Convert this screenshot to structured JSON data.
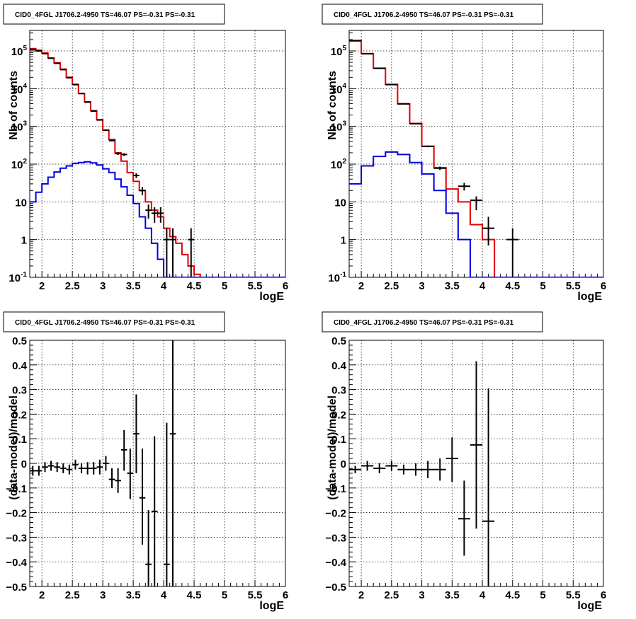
{
  "chart_data": [
    {
      "type": "histogram",
      "panel": "top-left",
      "title": "CID0_4FGL J1706.2-4950 TS=46.07 PS=-0.31 PS=-0.31",
      "xlabel": "logE",
      "ylabel": "Nb of counts",
      "xlim": [
        1.8,
        6.0
      ],
      "ylim": [
        0.1,
        350000
      ],
      "yscale": "log",
      "grid": true,
      "x_ticks": [
        "2",
        "2.5",
        "3",
        "3.5",
        "4",
        "4.5",
        "5",
        "5.5",
        "6"
      ],
      "y_ticks": [
        "10^-1",
        "1",
        "10",
        "10^2",
        "10^3",
        "10^4",
        "10^5"
      ],
      "bin_edges": [
        1.8,
        1.9,
        2.0,
        2.1,
        2.2,
        2.3,
        2.4,
        2.5,
        2.6,
        2.7,
        2.8,
        2.9,
        3.0,
        3.1,
        3.2,
        3.3,
        3.4,
        3.5,
        3.6,
        3.7,
        3.8,
        3.9,
        4.0,
        4.1,
        4.2,
        4.3,
        4.4,
        4.5,
        4.6,
        4.7,
        4.8,
        4.9,
        5.0,
        5.1,
        5.2,
        5.3,
        5.4,
        5.5,
        5.6,
        5.7,
        5.8,
        5.9,
        6.0
      ],
      "series": [
        {
          "name": "",
          "style": "histogram",
          "color": "#e00000",
          "values": [
            115000,
            105000,
            88000,
            65000,
            48000,
            33000,
            20000,
            13000,
            7500,
            4500,
            2600,
            1500,
            800,
            450,
            200,
            120,
            60,
            35,
            20,
            10,
            6,
            4,
            2,
            1.2,
            0.8,
            0.4,
            0.2,
            0.12,
            0.1,
            0.1,
            0.1,
            0.1,
            0.1,
            0.1,
            0.1,
            0.1,
            0.1,
            0.1,
            0.1,
            0.1,
            0.1,
            0.1
          ]
        },
        {
          "name": "",
          "style": "histogram",
          "color": "#0000e0",
          "values": [
            10,
            18,
            30,
            45,
            62,
            78,
            90,
            105,
            110,
            115,
            108,
            95,
            75,
            60,
            40,
            25,
            15,
            9,
            4,
            2,
            0.8,
            0.3,
            0.1,
            0.1,
            0.1,
            0.1,
            0.1,
            0.1,
            0.1,
            0.1,
            0.1,
            0.1,
            0.1,
            0.1,
            0.1,
            0.1,
            0.1,
            0.1,
            0.1,
            0.1,
            0.1,
            0.1
          ]
        },
        {
          "name": "",
          "style": "points",
          "color": "#000000",
          "points": [
            {
              "x": 1.85,
              "y": 110000,
              "xerr": 0.05,
              "ylo": 109000,
              "yhi": 111000
            },
            {
              "x": 1.95,
              "y": 100000,
              "xerr": 0.05,
              "ylo": 99000,
              "yhi": 101000
            },
            {
              "x": 2.05,
              "y": 85000,
              "xerr": 0.05,
              "ylo": 84000,
              "yhi": 86000
            },
            {
              "x": 2.15,
              "y": 64000,
              "xerr": 0.05,
              "ylo": 63000,
              "yhi": 65000
            },
            {
              "x": 2.25,
              "y": 47000,
              "xerr": 0.05,
              "ylo": 46500,
              "yhi": 47500
            },
            {
              "x": 2.35,
              "y": 32000,
              "xerr": 0.05,
              "ylo": 31500,
              "yhi": 32500
            },
            {
              "x": 2.45,
              "y": 19500,
              "xerr": 0.05,
              "ylo": 19200,
              "yhi": 19800
            },
            {
              "x": 2.55,
              "y": 12800,
              "xerr": 0.05,
              "ylo": 12600,
              "yhi": 13000
            },
            {
              "x": 2.65,
              "y": 7400,
              "xerr": 0.05,
              "ylo": 7300,
              "yhi": 7500
            },
            {
              "x": 2.75,
              "y": 4400,
              "xerr": 0.05,
              "ylo": 4330,
              "yhi": 4470
            },
            {
              "x": 2.85,
              "y": 2550,
              "xerr": 0.05,
              "ylo": 2500,
              "yhi": 2600
            },
            {
              "x": 2.95,
              "y": 1480,
              "xerr": 0.05,
              "ylo": 1440,
              "yhi": 1520
            },
            {
              "x": 3.05,
              "y": 790,
              "xerr": 0.05,
              "ylo": 760,
              "yhi": 820
            },
            {
              "x": 3.15,
              "y": 420,
              "xerr": 0.05,
              "ylo": 400,
              "yhi": 440
            },
            {
              "x": 3.25,
              "y": 190,
              "xerr": 0.05,
              "ylo": 175,
              "yhi": 205
            },
            {
              "x": 3.35,
              "y": 180,
              "xerr": 0.05,
              "ylo": 165,
              "yhi": 195
            },
            {
              "x": 3.55,
              "y": 50,
              "xerr": 0.05,
              "ylo": 43,
              "yhi": 57
            },
            {
              "x": 3.65,
              "y": 20,
              "xerr": 0.05,
              "ylo": 15,
              "yhi": 25
            },
            {
              "x": 3.75,
              "y": 6,
              "xerr": 0.05,
              "ylo": 3.6,
              "yhi": 8.5
            },
            {
              "x": 3.85,
              "y": 5,
              "xerr": 0.05,
              "ylo": 2.8,
              "yhi": 7.2
            },
            {
              "x": 3.95,
              "y": 5,
              "xerr": 0.05,
              "ylo": 2.8,
              "yhi": 7.2
            },
            {
              "x": 4.05,
              "y": 1,
              "xerr": 0.05,
              "ylo": 0.1,
              "yhi": 2
            },
            {
              "x": 4.15,
              "y": 1,
              "xerr": 0.05,
              "ylo": 0.1,
              "yhi": 2
            },
            {
              "x": 4.45,
              "y": 1,
              "xerr": 0.05,
              "ylo": 0.1,
              "yhi": 2
            }
          ]
        }
      ]
    },
    {
      "type": "histogram",
      "panel": "top-right",
      "title": "CID0_4FGL J1706.2-4950 TS=46.07 PS=-0.31 PS=-0.31",
      "xlabel": "logE",
      "ylabel": "Nb of counts",
      "xlim": [
        1.8,
        6.0
      ],
      "ylim": [
        0.1,
        350000
      ],
      "yscale": "log",
      "grid": true,
      "x_ticks": [
        "2",
        "2.5",
        "3",
        "3.5",
        "4",
        "4.5",
        "5",
        "5.5",
        "6"
      ],
      "y_ticks": [
        "10^-1",
        "1",
        "10",
        "10^2",
        "10^3",
        "10^4",
        "10^5"
      ],
      "bin_edges": [
        1.8,
        2.0,
        2.2,
        2.4,
        2.6,
        2.8,
        3.0,
        3.2,
        3.4,
        3.6,
        3.8,
        4.0,
        4.2,
        4.4,
        4.6,
        4.8,
        5.0,
        5.2,
        5.4,
        5.6,
        5.8,
        6.0
      ],
      "series": [
        {
          "name": "",
          "style": "histogram",
          "color": "#e00000",
          "values": [
            190000,
            85000,
            35000,
            13000,
            4000,
            1200,
            300,
            80,
            22,
            10,
            2.5,
            1,
            0.1,
            0.1,
            0.1,
            0.1,
            0.1,
            0.1,
            0.1,
            0.1,
            0.1
          ]
        },
        {
          "name": "",
          "style": "histogram",
          "color": "#0000e0",
          "values": [
            30,
            90,
            160,
            210,
            180,
            110,
            55,
            20,
            5,
            1,
            0.1,
            0.1,
            0.1,
            0.1,
            0.1,
            0.1,
            0.1,
            0.1,
            0.1,
            0.1,
            0.1
          ]
        },
        {
          "name": "",
          "style": "points",
          "color": "#000000",
          "points": [
            {
              "x": 1.9,
              "y": 185000,
              "xerr": 0.1,
              "ylo": 183000,
              "yhi": 187000
            },
            {
              "x": 2.1,
              "y": 84000,
              "xerr": 0.1,
              "ylo": 83000,
              "yhi": 85000
            },
            {
              "x": 2.3,
              "y": 34500,
              "xerr": 0.1,
              "ylo": 34000,
              "yhi": 35000
            },
            {
              "x": 2.5,
              "y": 12800,
              "xerr": 0.1,
              "ylo": 12600,
              "yhi": 13000
            },
            {
              "x": 2.7,
              "y": 3950,
              "xerr": 0.1,
              "ylo": 3880,
              "yhi": 4020
            },
            {
              "x": 2.9,
              "y": 1180,
              "xerr": 0.1,
              "ylo": 1150,
              "yhi": 1210
            },
            {
              "x": 3.1,
              "y": 295,
              "xerr": 0.1,
              "ylo": 280,
              "yhi": 310
            },
            {
              "x": 3.3,
              "y": 78,
              "xerr": 0.1,
              "ylo": 70,
              "yhi": 86
            },
            {
              "x": 3.7,
              "y": 26,
              "xerr": 0.1,
              "ylo": 20,
              "yhi": 32
            },
            {
              "x": 3.9,
              "y": 11,
              "xerr": 0.1,
              "ylo": 6,
              "yhi": 14
            },
            {
              "x": 4.1,
              "y": 2,
              "xerr": 0.1,
              "ylo": 0.7,
              "yhi": 4
            },
            {
              "x": 4.5,
              "y": 1,
              "xerr": 0.1,
              "ylo": 0.1,
              "yhi": 2
            }
          ]
        }
      ]
    },
    {
      "type": "scatter",
      "panel": "bottom-left",
      "title": "CID0_4FGL J1706.2-4950 TS=46.07 PS=-0.31 PS=-0.31",
      "xlabel": "logE",
      "ylabel": "(data-model)/model",
      "xlim": [
        1.8,
        6.0
      ],
      "ylim": [
        -0.5,
        0.5
      ],
      "grid": true,
      "x_ticks": [
        "2",
        "2.5",
        "3",
        "3.5",
        "4",
        "4.5",
        "5",
        "5.5",
        "6"
      ],
      "y_ticks": [
        "−0.5",
        "−0.4",
        "−0.3",
        "−0.2",
        "−0.1",
        "0",
        "0.1",
        "0.2",
        "0.3",
        "0.4",
        "0.5"
      ],
      "series": [
        {
          "name": "",
          "style": "points",
          "color": "#000000",
          "points": [
            {
              "x": 1.85,
              "y": -0.03,
              "xerr": 0.05,
              "ylo": -0.05,
              "yhi": -0.01
            },
            {
              "x": 1.95,
              "y": -0.03,
              "xerr": 0.05,
              "ylo": -0.05,
              "yhi": -0.01
            },
            {
              "x": 2.05,
              "y": -0.015,
              "xerr": 0.05,
              "ylo": -0.035,
              "yhi": 0.005
            },
            {
              "x": 2.15,
              "y": -0.01,
              "xerr": 0.05,
              "ylo": -0.03,
              "yhi": 0.01
            },
            {
              "x": 2.25,
              "y": -0.015,
              "xerr": 0.05,
              "ylo": -0.035,
              "yhi": 0.005
            },
            {
              "x": 2.35,
              "y": -0.02,
              "xerr": 0.05,
              "ylo": -0.04,
              "yhi": 0.0
            },
            {
              "x": 2.45,
              "y": -0.025,
              "xerr": 0.05,
              "ylo": -0.045,
              "yhi": -0.005
            },
            {
              "x": 2.55,
              "y": -0.005,
              "xerr": 0.05,
              "ylo": -0.025,
              "yhi": 0.015
            },
            {
              "x": 2.65,
              "y": -0.02,
              "xerr": 0.05,
              "ylo": -0.04,
              "yhi": 0.0
            },
            {
              "x": 2.75,
              "y": -0.02,
              "xerr": 0.05,
              "ylo": -0.045,
              "yhi": 0.005
            },
            {
              "x": 2.85,
              "y": -0.02,
              "xerr": 0.05,
              "ylo": -0.045,
              "yhi": 0.005
            },
            {
              "x": 2.95,
              "y": -0.015,
              "xerr": 0.05,
              "ylo": -0.045,
              "yhi": 0.015
            },
            {
              "x": 3.05,
              "y": 0.0,
              "xerr": 0.05,
              "ylo": -0.03,
              "yhi": 0.03
            },
            {
              "x": 3.15,
              "y": -0.065,
              "xerr": 0.05,
              "ylo": -0.1,
              "yhi": -0.02
            },
            {
              "x": 3.25,
              "y": -0.07,
              "xerr": 0.05,
              "ylo": -0.12,
              "yhi": -0.02
            },
            {
              "x": 3.35,
              "y": 0.055,
              "xerr": 0.05,
              "ylo": -0.03,
              "yhi": 0.135
            },
            {
              "x": 3.45,
              "y": -0.04,
              "xerr": 0.05,
              "ylo": -0.145,
              "yhi": 0.06
            },
            {
              "x": 3.55,
              "y": 0.12,
              "xerr": 0.05,
              "ylo": -0.04,
              "yhi": 0.28
            },
            {
              "x": 3.65,
              "y": -0.14,
              "xerr": 0.05,
              "ylo": -0.33,
              "yhi": 0.06
            },
            {
              "x": 3.75,
              "y": -0.41,
              "xerr": 0.05,
              "ylo": -0.5,
              "yhi": -0.19
            },
            {
              "x": 3.85,
              "y": -0.195,
              "xerr": 0.05,
              "ylo": -0.5,
              "yhi": 0.11
            },
            {
              "x": 4.05,
              "y": -0.41,
              "xerr": 0.05,
              "ylo": -0.5,
              "yhi": 0.165
            },
            {
              "x": 4.15,
              "y": 0.12,
              "xerr": 0.05,
              "ylo": -0.5,
              "yhi": 0.5
            }
          ]
        }
      ]
    },
    {
      "type": "scatter",
      "panel": "bottom-right",
      "title": "CID0_4FGL J1706.2-4950 TS=46.07 PS=-0.31 PS=-0.31",
      "xlabel": "logE",
      "ylabel": "(data-model)/model",
      "xlim": [
        1.8,
        6.0
      ],
      "ylim": [
        -0.5,
        0.5
      ],
      "grid": true,
      "x_ticks": [
        "2",
        "2.5",
        "3",
        "3.5",
        "4",
        "4.5",
        "5",
        "5.5",
        "6"
      ],
      "y_ticks": [
        "−0.5",
        "−0.4",
        "−0.3",
        "−0.2",
        "−0.1",
        "0",
        "0.1",
        "0.2",
        "0.3",
        "0.4",
        "0.5"
      ],
      "series": [
        {
          "name": "",
          "style": "points",
          "color": "#000000",
          "points": [
            {
              "x": 1.9,
              "y": -0.025,
              "xerr": 0.1,
              "ylo": -0.04,
              "yhi": -0.01
            },
            {
              "x": 2.1,
              "y": -0.01,
              "xerr": 0.1,
              "ylo": -0.03,
              "yhi": 0.01
            },
            {
              "x": 2.3,
              "y": -0.02,
              "xerr": 0.1,
              "ylo": -0.04,
              "yhi": 0.0
            },
            {
              "x": 2.5,
              "y": -0.01,
              "xerr": 0.1,
              "ylo": -0.03,
              "yhi": 0.01
            },
            {
              "x": 2.7,
              "y": -0.025,
              "xerr": 0.1,
              "ylo": -0.045,
              "yhi": -0.005
            },
            {
              "x": 2.9,
              "y": -0.025,
              "xerr": 0.1,
              "ylo": -0.05,
              "yhi": 0.0
            },
            {
              "x": 3.1,
              "y": -0.025,
              "xerr": 0.1,
              "ylo": -0.06,
              "yhi": 0.01
            },
            {
              "x": 3.3,
              "y": -0.025,
              "xerr": 0.1,
              "ylo": -0.07,
              "yhi": 0.02
            },
            {
              "x": 3.5,
              "y": 0.02,
              "xerr": 0.1,
              "ylo": -0.075,
              "yhi": 0.105
            },
            {
              "x": 3.7,
              "y": -0.225,
              "xerr": 0.1,
              "ylo": -0.375,
              "yhi": -0.07
            },
            {
              "x": 3.9,
              "y": 0.075,
              "xerr": 0.1,
              "ylo": -0.265,
              "yhi": 0.415
            },
            {
              "x": 4.1,
              "y": -0.235,
              "xerr": 0.1,
              "ylo": -0.5,
              "yhi": 0.305
            }
          ]
        }
      ]
    }
  ]
}
